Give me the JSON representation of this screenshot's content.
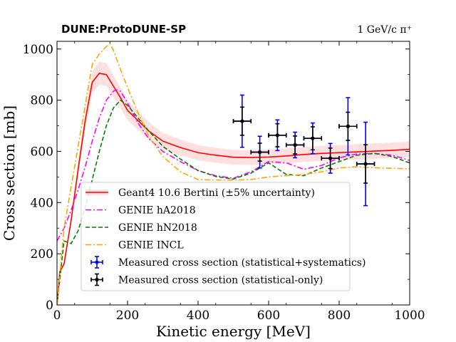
{
  "chart_data": {
    "type": "line",
    "title_left": "DUNE:ProtoDUNE-SP",
    "title_right": "1 GeV/c π⁺",
    "xlabel": "Kinetic energy [MeV]",
    "ylabel": "Cross section [mb]",
    "xlim": [
      0,
      1000
    ],
    "ylim": [
      0,
      1030
    ],
    "xticks": [
      0,
      200,
      400,
      600,
      800,
      1000
    ],
    "yticks": [
      0,
      200,
      400,
      600,
      800,
      1000
    ],
    "grid": false,
    "legend_position": "lower-left",
    "series": [
      {
        "name": "Geant4 10.6 Bertini (±5% uncertainty)",
        "style": "solid",
        "color": "#ff0000",
        "band_fraction": 0.05,
        "x": [
          0,
          8,
          20,
          40,
          60,
          80,
          100,
          120,
          140,
          160,
          180,
          200,
          230,
          260,
          300,
          350,
          400,
          450,
          500,
          550,
          600,
          650,
          700,
          750,
          800,
          850,
          900,
          950,
          1000
        ],
        "y": [
          0,
          130,
          160,
          330,
          530,
          720,
          870,
          905,
          900,
          855,
          810,
          760,
          720,
          680,
          640,
          615,
          595,
          585,
          577,
          576,
          578,
          582,
          588,
          592,
          595,
          598,
          601,
          604,
          608
        ]
      },
      {
        "name": "GENIE hA2018",
        "style": "dashdot",
        "color": "#ff00ff",
        "x": [
          0,
          20,
          40,
          60,
          80,
          100,
          120,
          140,
          160,
          170,
          180,
          200,
          230,
          260,
          300,
          350,
          400,
          450,
          500,
          550,
          600,
          650,
          700,
          750,
          800,
          850,
          900,
          950,
          1000
        ],
        "y": [
          250,
          300,
          370,
          450,
          540,
          640,
          730,
          800,
          835,
          840,
          835,
          790,
          710,
          650,
          600,
          560,
          525,
          505,
          495,
          520,
          560,
          555,
          530,
          545,
          575,
          590,
          592,
          585,
          565
        ]
      },
      {
        "name": "GENIE hN2018",
        "style": "dashed",
        "color": "#008000",
        "x": [
          0,
          20,
          40,
          60,
          80,
          100,
          120,
          140,
          160,
          180,
          200,
          230,
          260,
          300,
          350,
          400,
          450,
          500,
          550,
          600,
          650,
          700,
          750,
          800,
          850,
          900,
          950,
          1000
        ],
        "y": [
          0,
          250,
          240,
          290,
          380,
          490,
          600,
          700,
          770,
          800,
          780,
          730,
          680,
          620,
          570,
          525,
          502,
          492,
          515,
          555,
          510,
          505,
          535,
          560,
          585,
          592,
          580,
          555
        ]
      },
      {
        "name": "GENIE INCL",
        "style": "dashdot",
        "color": "#ffa500",
        "x": [
          0,
          20,
          40,
          60,
          80,
          100,
          120,
          140,
          150,
          160,
          180,
          200,
          230,
          260,
          300,
          350,
          400,
          450,
          500,
          550,
          600,
          650,
          700,
          750,
          800,
          850,
          900,
          950,
          1000
        ],
        "y": [
          0,
          300,
          460,
          620,
          780,
          940,
          980,
          1010,
          1020,
          995,
          920,
          850,
          750,
          660,
          580,
          520,
          490,
          488,
          488,
          490,
          500,
          505,
          510,
          520,
          535,
          540,
          536,
          534,
          532
        ]
      }
    ],
    "measurements": {
      "stat_syst": {
        "name": "Measured cross section (statistical+systematics)",
        "color": "#0000ff",
        "points": [
          {
            "x": 525,
            "y": 718,
            "xerr": 25,
            "yerr": 102
          },
          {
            "x": 575,
            "y": 597,
            "xerr": 25,
            "yerr": 62
          },
          {
            "x": 625,
            "y": 663,
            "xerr": 25,
            "yerr": 60
          },
          {
            "x": 675,
            "y": 625,
            "xerr": 25,
            "yerr": 50
          },
          {
            "x": 725,
            "y": 651,
            "xerr": 25,
            "yerr": 60
          },
          {
            "x": 775,
            "y": 573,
            "xerr": 25,
            "yerr": 58
          },
          {
            "x": 825,
            "y": 698,
            "xerr": 25,
            "yerr": 112
          },
          {
            "x": 875,
            "y": 551,
            "xerr": 25,
            "yerr": 163
          }
        ]
      },
      "stat_only": {
        "name": "Measured cross section (statistical-only)",
        "color": "#000000",
        "points": [
          {
            "x": 525,
            "y": 718,
            "xerr": 25,
            "yerr": 55
          },
          {
            "x": 575,
            "y": 597,
            "xerr": 25,
            "yerr": 35
          },
          {
            "x": 625,
            "y": 663,
            "xerr": 25,
            "yerr": 45
          },
          {
            "x": 675,
            "y": 625,
            "xerr": 25,
            "yerr": 35
          },
          {
            "x": 725,
            "y": 651,
            "xerr": 25,
            "yerr": 45
          },
          {
            "x": 775,
            "y": 573,
            "xerr": 25,
            "yerr": 40
          },
          {
            "x": 825,
            "y": 698,
            "xerr": 25,
            "yerr": 55
          },
          {
            "x": 875,
            "y": 551,
            "xerr": 25,
            "yerr": 75
          }
        ]
      }
    }
  }
}
